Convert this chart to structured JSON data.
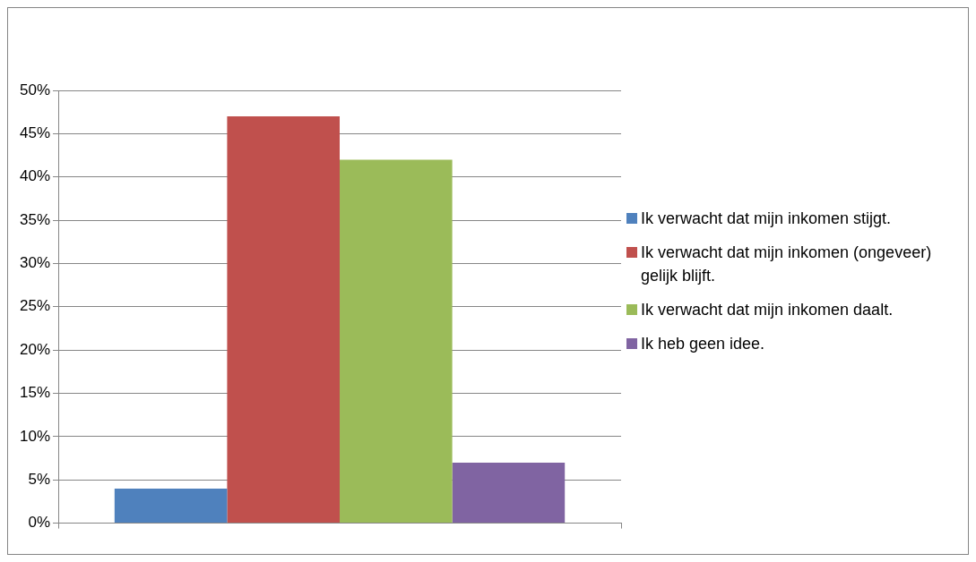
{
  "chart_data": {
    "type": "bar",
    "categories": [
      null
    ],
    "series": [
      {
        "name": "Ik verwacht dat mijn inkomen stijgt.",
        "color": "#4f81bd",
        "values": [
          4
        ]
      },
      {
        "name": "Ik verwacht dat mijn inkomen (ongeveer) gelijk blijft.",
        "color": "#c0504d",
        "values": [
          47
        ]
      },
      {
        "name": "Ik verwacht dat mijn inkomen daalt.",
        "color": "#9bbb59",
        "values": [
          42
        ]
      },
      {
        "name": "Ik heb geen idee.",
        "color": "#8064a2",
        "values": [
          7
        ]
      }
    ],
    "ylim": [
      0,
      50
    ],
    "yticks": [
      {
        "value": 0,
        "label": "0%"
      },
      {
        "value": 5,
        "label": "5%"
      },
      {
        "value": 10,
        "label": "10%"
      },
      {
        "value": 15,
        "label": "15%"
      },
      {
        "value": 20,
        "label": "20%"
      },
      {
        "value": 25,
        "label": "25%"
      },
      {
        "value": 30,
        "label": "30%"
      },
      {
        "value": 35,
        "label": "35%"
      },
      {
        "value": 40,
        "label": "40%"
      },
      {
        "value": 45,
        "label": "45%"
      },
      {
        "value": 50,
        "label": "50%"
      }
    ],
    "grid": "y",
    "legend": "right"
  }
}
